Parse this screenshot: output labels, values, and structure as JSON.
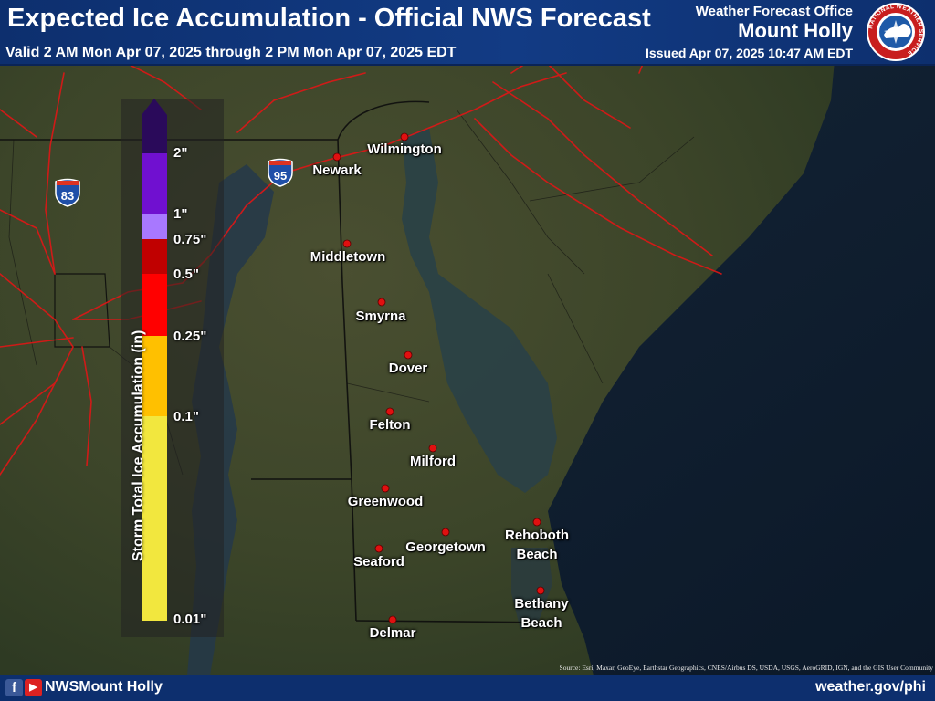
{
  "header": {
    "title": "Expected Ice Accumulation - Official NWS Forecast",
    "valid": "Valid 2 AM Mon Apr 07, 2025 through 2 PM Mon Apr 07, 2025 EDT",
    "office_label": "Weather Forecast Office",
    "office_name": "Mount Holly",
    "issued": "Issued Apr 07, 2025 10:47 AM EDT",
    "logo_text": "NATIONAL WEATHER SERVICE"
  },
  "legend": {
    "title": "Storm Total Ice Accumulation (in)",
    "bins": [
      {
        "label": "0.01\"",
        "color": "#f2e73e"
      },
      {
        "label": "0.1\"",
        "color": "#ffc000"
      },
      {
        "label": "0.25\"",
        "color": "#ff0000"
      },
      {
        "label": "0.5\"",
        "color": "#c00000"
      },
      {
        "label": "0.75\"",
        "color": "#a878ff"
      },
      {
        "label": "1\"",
        "color": "#7010d0"
      },
      {
        "label": "2\"",
        "color": "#2a0a5a"
      }
    ],
    "top_color": "#2a0a5a"
  },
  "highways": [
    {
      "number": "83",
      "type": "interstate"
    },
    {
      "number": "95",
      "type": "interstate"
    }
  ],
  "cities": [
    {
      "name": "Wilmington"
    },
    {
      "name": "Newark"
    },
    {
      "name": "Middletown"
    },
    {
      "name": "Smyrna"
    },
    {
      "name": "Dover"
    },
    {
      "name": "Felton"
    },
    {
      "name": "Milford"
    },
    {
      "name": "Greenwood"
    },
    {
      "name": "Georgetown"
    },
    {
      "name": "Rehoboth Beach"
    },
    {
      "name": "Seaford"
    },
    {
      "name": "Bethany Beach"
    },
    {
      "name": "Delmar"
    }
  ],
  "footer": {
    "social_handle": "NWSMount Holly",
    "website": "weather.gov/phi",
    "source": "Source: Esri, Maxar, GeoEye, Earthstar Geographics, CNES/Airbus DS, USDA, USGS, AeroGRID, IGN, and the GIS User Community"
  },
  "colors": {
    "header_bg": "#123b84",
    "land": "#3d4a2c",
    "water": "#1d3140",
    "ocean": "#0e1d31",
    "roads": "#e01616",
    "city_marker": "#e01010"
  }
}
